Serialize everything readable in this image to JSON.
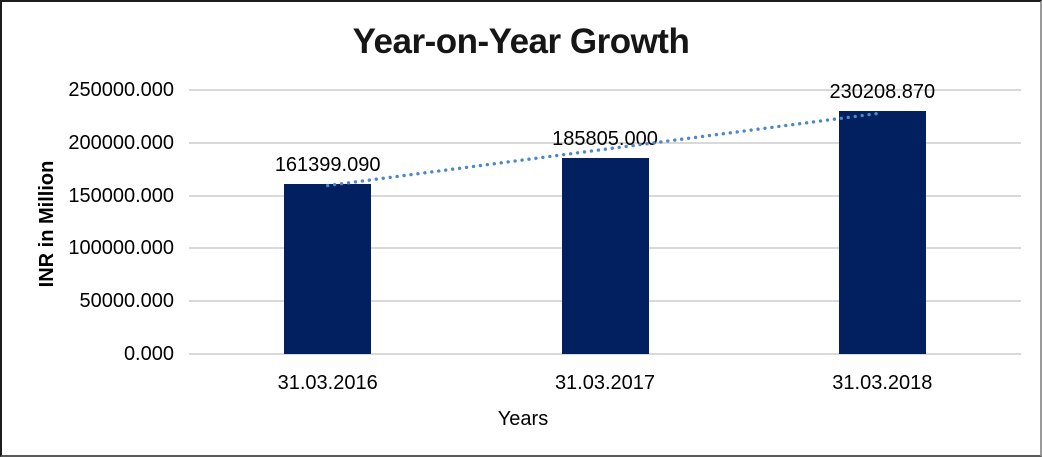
{
  "window": {
    "background": "#ffffff",
    "border_color": "#1c1c1c"
  },
  "chart_data": {
    "type": "bar",
    "title": "Year-on-Year Growth",
    "xlabel": "Years",
    "ylabel": "INR in Million",
    "categories": [
      "31.03.2016",
      "31.03.2017",
      "31.03.2018"
    ],
    "values": [
      161399.09,
      185805.0,
      230208.87
    ],
    "data_labels": [
      "161399.090",
      "185805.000",
      "230208.870"
    ],
    "y_ticks": [
      {
        "label": "0.000",
        "value": 0
      },
      {
        "label": "50000.000",
        "value": 50000
      },
      {
        "label": "100000.000",
        "value": 100000
      },
      {
        "label": "150000.000",
        "value": 150000
      },
      {
        "label": "200000.000",
        "value": 200000
      },
      {
        "label": "250000.000",
        "value": 250000
      }
    ],
    "ylim": [
      0,
      250000
    ],
    "grid": true,
    "legend": false,
    "trendline": {
      "type": "linear",
      "style": "dotted",
      "from_category": "31.03.2016",
      "to_category": "31.03.2018"
    },
    "colors": {
      "bar": "#022060",
      "trendline": "#4d87c7",
      "gridline": "#d9d9d9",
      "text": "#000000"
    }
  }
}
